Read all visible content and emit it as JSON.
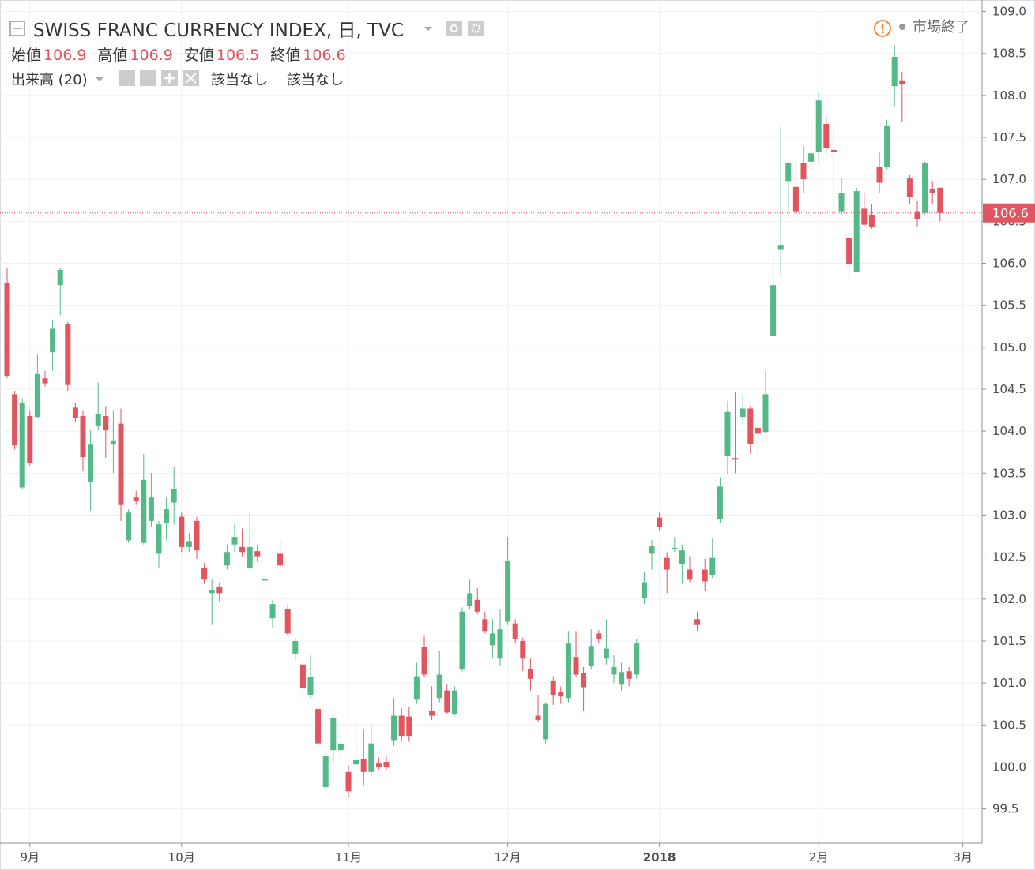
{
  "chart_data": {
    "type": "candlestick",
    "title": "SWISS FRANC CURRENCY INDEX, 日, TVC",
    "ohlc_legend": [
      {
        "label": "始値",
        "value": 106.9
      },
      {
        "label": "高値",
        "value": 106.9
      },
      {
        "label": "安値",
        "value": 106.5
      },
      {
        "label": "終値",
        "value": 106.6
      }
    ],
    "volume_label": "出来高 (20)",
    "volume_values": [
      "該当なし",
      "該当なし"
    ],
    "status": "市場終了",
    "last_price": 106.6,
    "up_color": "#53b987",
    "down_color": "#e2545e",
    "grid": true,
    "categories": [
      null,
      null,
      null,
      "9月",
      null,
      null,
      null,
      null,
      null,
      null,
      null,
      null,
      null,
      null,
      null,
      null,
      null,
      null,
      null,
      null,
      null,
      null,
      null,
      "10月",
      null,
      null,
      null,
      null,
      null,
      null,
      null,
      null,
      null,
      null,
      null,
      null,
      null,
      null,
      null,
      null,
      null,
      null,
      null,
      null,
      null,
      "11月",
      null,
      null,
      null,
      null,
      null,
      null,
      null,
      null,
      null,
      null,
      null,
      null,
      null,
      null,
      null,
      null,
      null,
      null,
      null,
      null,
      "12月",
      null,
      null,
      null,
      null,
      null,
      null,
      null,
      null,
      null,
      null,
      null,
      null,
      null,
      null,
      null,
      null,
      null,
      null,
      null,
      "2018",
      null,
      null,
      null,
      null,
      null,
      null,
      null,
      null,
      null,
      null,
      null,
      null,
      null,
      null,
      null,
      null,
      null,
      null,
      null,
      null,
      "2月",
      null,
      null,
      null,
      null,
      null,
      null,
      null,
      null,
      null,
      null,
      null,
      null,
      null,
      null,
      null,
      null,
      null,
      null,
      "3月"
    ],
    "open": [
      105.77,
      104.44,
      103.33,
      104.18,
      104.17,
      104.63,
      104.94,
      105.74,
      105.28,
      104.28,
      104.18,
      103.4,
      104.06,
      104.18,
      103.84,
      104.09,
      102.7,
      103.21,
      102.67,
      102.93,
      102.54,
      102.91,
      103.15,
      102.98,
      102.62,
      102.93,
      102.37,
      102.07,
      102.15,
      102.4,
      102.65,
      102.62,
      102.37,
      102.57,
      102.22,
      101.77,
      102.54,
      101.88,
      101.35,
      101.22,
      100.86,
      100.69,
      99.76,
      100.2,
      100.2,
      99.94,
      100.03,
      100.09,
      99.94,
      100.04,
      100.06,
      100.32,
      100.61,
      100.6,
      100.8,
      101.43,
      100.67,
      100.82,
      100.91,
      100.63,
      101.17,
      101.92,
      101.99,
      101.76,
      101.45,
      101.29,
      101.73,
      101.71,
      101.5,
      101.17,
      100.61,
      100.33,
      101.03,
      100.89,
      100.82,
      101.31,
      101.12,
      101.2,
      101.59,
      101.29,
      101.1,
      100.98,
      101.14,
      101.1,
      102.01,
      102.54,
      102.97,
      102.49,
      102.6,
      102.42,
      102.35,
      101.76,
      102.35,
      102.29,
      102.95,
      103.71,
      103.68,
      104.17,
      104.27,
      104.04,
      103.99,
      105.14,
      106.16,
      106.98,
      106.91,
      107.19,
      107.21,
      107.33,
      107.66,
      107.35,
      106.62,
      106.3,
      105.9,
      106.65,
      106.58,
      107.15,
      107.15,
      108.11,
      108.18,
      107.01,
      106.62,
      106.6,
      106.89,
      106.9,
      null,
      null,
      null
    ],
    "high": [
      105.94,
      104.48,
      104.39,
      104.25,
      104.91,
      104.72,
      105.33,
      105.94,
      105.3,
      104.34,
      104.25,
      104.01,
      104.58,
      104.3,
      104.25,
      104.27,
      103.07,
      103.29,
      103.73,
      103.5,
      102.93,
      103.21,
      103.57,
      103.03,
      102.79,
      102.98,
      102.43,
      102.23,
      102.2,
      102.65,
      102.91,
      102.84,
      103.03,
      102.65,
      102.29,
      101.99,
      102.7,
      101.94,
      101.54,
      101.26,
      101.33,
      100.72,
      100.16,
      100.63,
      100.37,
      100.02,
      100.53,
      100.44,
      100.51,
      100.11,
      100.13,
      100.82,
      100.7,
      100.72,
      101.24,
      101.57,
      100.96,
      101.38,
      100.98,
      100.96,
      101.9,
      102.23,
      102.13,
      101.85,
      101.76,
      101.88,
      102.74,
      101.76,
      101.54,
      101.29,
      100.86,
      100.77,
      101.08,
      100.96,
      101.62,
      101.62,
      101.19,
      101.64,
      101.63,
      101.76,
      101.33,
      101.24,
      101.19,
      101.52,
      102.32,
      102.7,
      103.03,
      102.56,
      102.74,
      102.65,
      102.51,
      101.85,
      102.48,
      102.73,
      103.45,
      104.36,
      104.46,
      104.44,
      104.3,
      104.16,
      104.72,
      106.13,
      107.64,
      107.21,
      107.21,
      107.4,
      107.68,
      108.04,
      107.75,
      107.64,
      107.02,
      106.32,
      106.9,
      106.84,
      106.71,
      107.33,
      107.71,
      108.6,
      108.28,
      107.05,
      106.74,
      107.21,
      106.98,
      106.9,
      null,
      null,
      null
    ],
    "low": [
      104.63,
      103.78,
      103.31,
      103.59,
      104.16,
      104.53,
      104.72,
      105.38,
      104.48,
      104.11,
      103.52,
      103.05,
      104.01,
      103.68,
      103.5,
      102.93,
      102.67,
      103.12,
      102.65,
      102.86,
      102.37,
      102.7,
      102.89,
      102.56,
      102.56,
      102.48,
      102.18,
      101.69,
      101.97,
      102.35,
      102.56,
      102.51,
      102.35,
      102.44,
      102.18,
      101.66,
      102.37,
      101.56,
      101.26,
      100.86,
      100.82,
      100.22,
      99.71,
      100.06,
      100.11,
      99.64,
      99.97,
      99.78,
      99.9,
      99.97,
      99.97,
      100.25,
      100.3,
      100.3,
      100.75,
      101.07,
      100.56,
      100.77,
      100.63,
      100.61,
      101.14,
      101.88,
      101.82,
      101.59,
      101.29,
      101.21,
      101.69,
      101.47,
      101.14,
      100.91,
      100.53,
      100.28,
      100.74,
      100.75,
      100.77,
      101.07,
      100.67,
      101.16,
      101.47,
      101.22,
      101.0,
      100.91,
      100.96,
      101.05,
      101.94,
      102.35,
      102.82,
      102.07,
      102.56,
      102.18,
      102.2,
      101.62,
      102.1,
      102.25,
      102.91,
      103.48,
      103.5,
      104.08,
      103.73,
      103.73,
      103.97,
      105.12,
      105.85,
      106.6,
      106.55,
      106.84,
      107.12,
      107.21,
      107.31,
      106.62,
      106.58,
      105.8,
      105.9,
      106.44,
      106.41,
      106.84,
      107.12,
      107.87,
      107.68,
      106.71,
      106.44,
      106.58,
      106.71,
      106.5,
      null,
      null,
      null
    ],
    "close": [
      104.66,
      103.83,
      104.34,
      103.62,
      104.68,
      104.57,
      105.22,
      105.92,
      104.55,
      104.16,
      103.69,
      103.84,
      104.2,
      104.01,
      103.89,
      103.12,
      103.03,
      103.17,
      103.42,
      103.21,
      102.89,
      103.07,
      103.31,
      102.62,
      102.69,
      102.58,
      102.23,
      102.11,
      102.07,
      102.56,
      102.74,
      102.56,
      102.62,
      102.51,
      102.24,
      101.94,
      102.4,
      101.59,
      101.5,
      100.94,
      101.07,
      100.28,
      100.13,
      100.58,
      100.27,
      99.71,
      100.08,
      99.94,
      100.28,
      100.0,
      100.0,
      100.61,
      100.37,
      100.37,
      101.08,
      101.1,
      100.61,
      101.1,
      100.65,
      100.91,
      101.85,
      102.07,
      101.85,
      101.62,
      101.59,
      101.64,
      102.46,
      101.52,
      101.29,
      101.05,
      100.56,
      100.75,
      100.86,
      100.84,
      101.47,
      101.1,
      100.95,
      101.44,
      101.52,
      101.41,
      101.19,
      101.13,
      101.05,
      101.47,
      102.2,
      102.63,
      102.86,
      102.35,
      102.61,
      102.58,
      102.23,
      101.69,
      102.21,
      102.49,
      103.34,
      104.23,
      103.66,
      104.27,
      103.85,
      103.97,
      104.44,
      105.74,
      106.22,
      107.2,
      106.62,
      107.0,
      107.31,
      107.94,
      107.37,
      107.33,
      106.84,
      105.99,
      106.86,
      106.46,
      106.43,
      106.96,
      107.64,
      108.46,
      108.13,
      106.79,
      106.53,
      107.19,
      106.84,
      106.6,
      null,
      null,
      null
    ],
    "ylim": [
      99.12,
      109.09
    ],
    "yticks": [
      99.5,
      {
        "value": 100,
        "label": "100.0"
      },
      100.5,
      {
        "value": 101,
        "label": "101.0"
      },
      101.5,
      {
        "value": 102,
        "label": "102.0"
      },
      102.5,
      {
        "value": 103,
        "label": "103.0"
      },
      103.5,
      {
        "value": 104,
        "label": "104.0"
      },
      104.5,
      {
        "value": 105,
        "label": "105.0"
      },
      105.5,
      {
        "value": 106,
        "label": "106.0"
      },
      106.5,
      {
        "value": 107,
        "label": "107.0"
      },
      107.5,
      {
        "value": 108,
        "label": "108.0"
      },
      108.5,
      {
        "value": 109,
        "label": "109.0"
      }
    ]
  }
}
